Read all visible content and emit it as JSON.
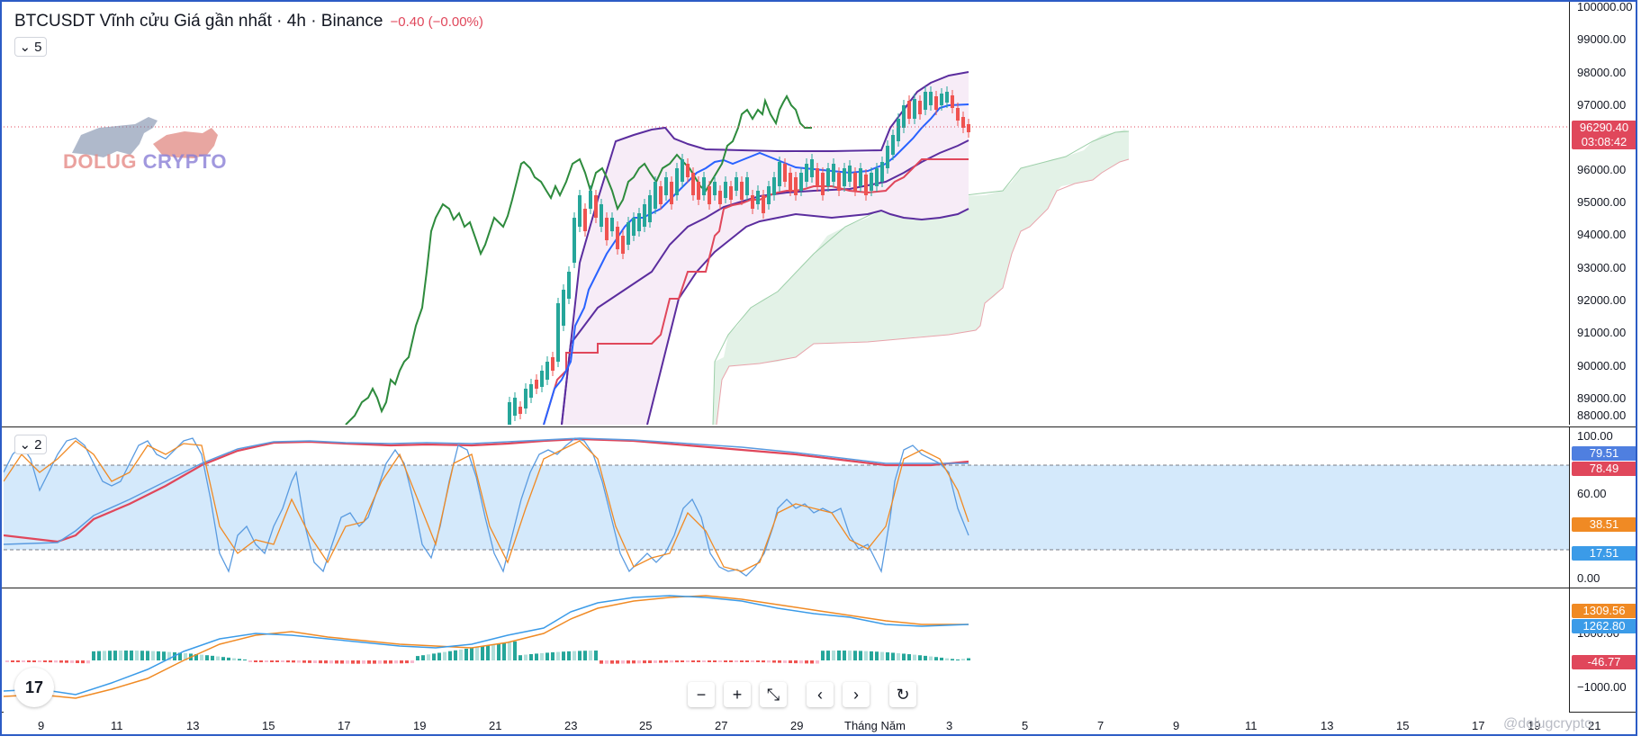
{
  "header": {
    "symbol_title": "BTCUSDT Vĩnh cửu Giá gần nhất · 4h · Binance",
    "change": "−0.40 (−0.00%)",
    "main_badge": "5",
    "rsi_badge": "2"
  },
  "logo": {
    "text_a": "DOLUG",
    "text_b": "CRYPTO"
  },
  "price_axis": {
    "labels": [
      "100000.00",
      "99000.00",
      "98000.00",
      "97000.00",
      "96000.00",
      "95000.00",
      "94000.00",
      "93000.00",
      "92000.00",
      "91000.00",
      "90000.00",
      "89000.00",
      "88000.00"
    ],
    "last_price": "96290.40",
    "countdown": "03:08:42",
    "tag_color": "#e0475b"
  },
  "rsi_axis": {
    "labels": [
      "100.00",
      "60.00",
      "0.00"
    ],
    "tag_blue": "79.51",
    "tag_red": "78.49",
    "tag_orange": "38.51",
    "tag_lightblue": "17.51"
  },
  "macd_axis": {
    "labels": [
      "1000.00",
      "−1000.00"
    ],
    "tag_orange": "1309.56",
    "tag_blue": "1262.80",
    "tag_red": "-46.77"
  },
  "time_axis": {
    "labels": [
      "9",
      "11",
      "13",
      "15",
      "17",
      "19",
      "21",
      "23",
      "25",
      "27",
      "29",
      "Tháng Năm",
      "3",
      "5",
      "7",
      "9",
      "11",
      "13",
      "15",
      "17",
      "19",
      "21"
    ]
  },
  "toolbar": {
    "zoom_out": "−",
    "zoom_in": "+",
    "reset_zoom": "⤡",
    "scroll_left": "‹",
    "scroll_right": "›",
    "reload": "↻"
  },
  "tradingview_logo": "17",
  "watermark": "@dolugcrypto",
  "colors": {
    "up": "#26a69a",
    "down": "#ef5350",
    "bollinger": "#5b2d9e",
    "kijun": "#e0475b",
    "tenkan": "#2962ff",
    "chikou": "#2e8b3d",
    "cloud": "#e3f2e7",
    "rsi_band": "#d4e9fb"
  }
}
